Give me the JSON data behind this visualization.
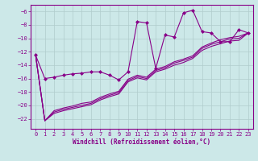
{
  "xlabel": "Windchill (Refroidissement éolien,°C)",
  "bg_color": "#cce8e8",
  "grid_color": "#b0cccc",
  "line_color": "#880088",
  "marker_color": "#880088",
  "xlim": [
    -0.5,
    23.5
  ],
  "ylim": [
    -23.5,
    -5.0
  ],
  "yticks": [
    -22,
    -20,
    -18,
    -16,
    -14,
    -12,
    -10,
    -8,
    -6
  ],
  "xticks": [
    0,
    1,
    2,
    3,
    4,
    5,
    6,
    7,
    8,
    9,
    10,
    11,
    12,
    13,
    14,
    15,
    16,
    17,
    18,
    19,
    20,
    21,
    22,
    23
  ],
  "series1_x": [
    0,
    1,
    2,
    3,
    4,
    5,
    6,
    7,
    8,
    9,
    10,
    11,
    12,
    13,
    14,
    15,
    16,
    17,
    18,
    19,
    20,
    21,
    22,
    23
  ],
  "series1_y": [
    -12.5,
    -16.0,
    -15.8,
    -15.5,
    -15.3,
    -15.2,
    -15.0,
    -15.0,
    -15.5,
    -16.2,
    -15.0,
    -7.5,
    -7.7,
    -14.5,
    -9.5,
    -9.8,
    -6.2,
    -5.8,
    -9.0,
    -9.2,
    -10.5,
    -10.5,
    -8.7,
    -9.2
  ],
  "series2_x": [
    0,
    1,
    2,
    3,
    4,
    5,
    6,
    7,
    8,
    9,
    10,
    11,
    12,
    13,
    14,
    15,
    16,
    17,
    18,
    19,
    20,
    21,
    22,
    23
  ],
  "series2_y": [
    -12.5,
    -22.3,
    -21.2,
    -20.8,
    -20.5,
    -20.2,
    -19.9,
    -19.2,
    -18.7,
    -18.3,
    -16.5,
    -15.9,
    -16.2,
    -15.0,
    -14.6,
    -14.0,
    -13.6,
    -13.0,
    -11.8,
    -11.2,
    -10.8,
    -10.4,
    -10.3,
    -9.2
  ],
  "series3_x": [
    0,
    1,
    2,
    3,
    4,
    5,
    6,
    7,
    8,
    9,
    10,
    11,
    12,
    13,
    14,
    15,
    16,
    17,
    18,
    19,
    20,
    21,
    22,
    23
  ],
  "series3_y": [
    -12.5,
    -22.3,
    -21.0,
    -20.6,
    -20.3,
    -20.0,
    -19.7,
    -19.0,
    -18.5,
    -18.1,
    -16.3,
    -15.7,
    -16.0,
    -14.8,
    -14.4,
    -13.7,
    -13.3,
    -12.8,
    -11.5,
    -10.9,
    -10.5,
    -10.1,
    -10.0,
    -9.2
  ],
  "series4_x": [
    0,
    1,
    2,
    3,
    4,
    5,
    6,
    7,
    8,
    9,
    10,
    11,
    12,
    13,
    14,
    15,
    16,
    17,
    18,
    19,
    20,
    21,
    22,
    23
  ],
  "series4_y": [
    -12.5,
    -22.3,
    -20.8,
    -20.4,
    -20.1,
    -19.7,
    -19.5,
    -18.8,
    -18.3,
    -17.9,
    -16.1,
    -15.5,
    -15.8,
    -14.6,
    -14.2,
    -13.5,
    -13.1,
    -12.6,
    -11.3,
    -10.7,
    -10.2,
    -9.9,
    -9.7,
    -9.2
  ]
}
